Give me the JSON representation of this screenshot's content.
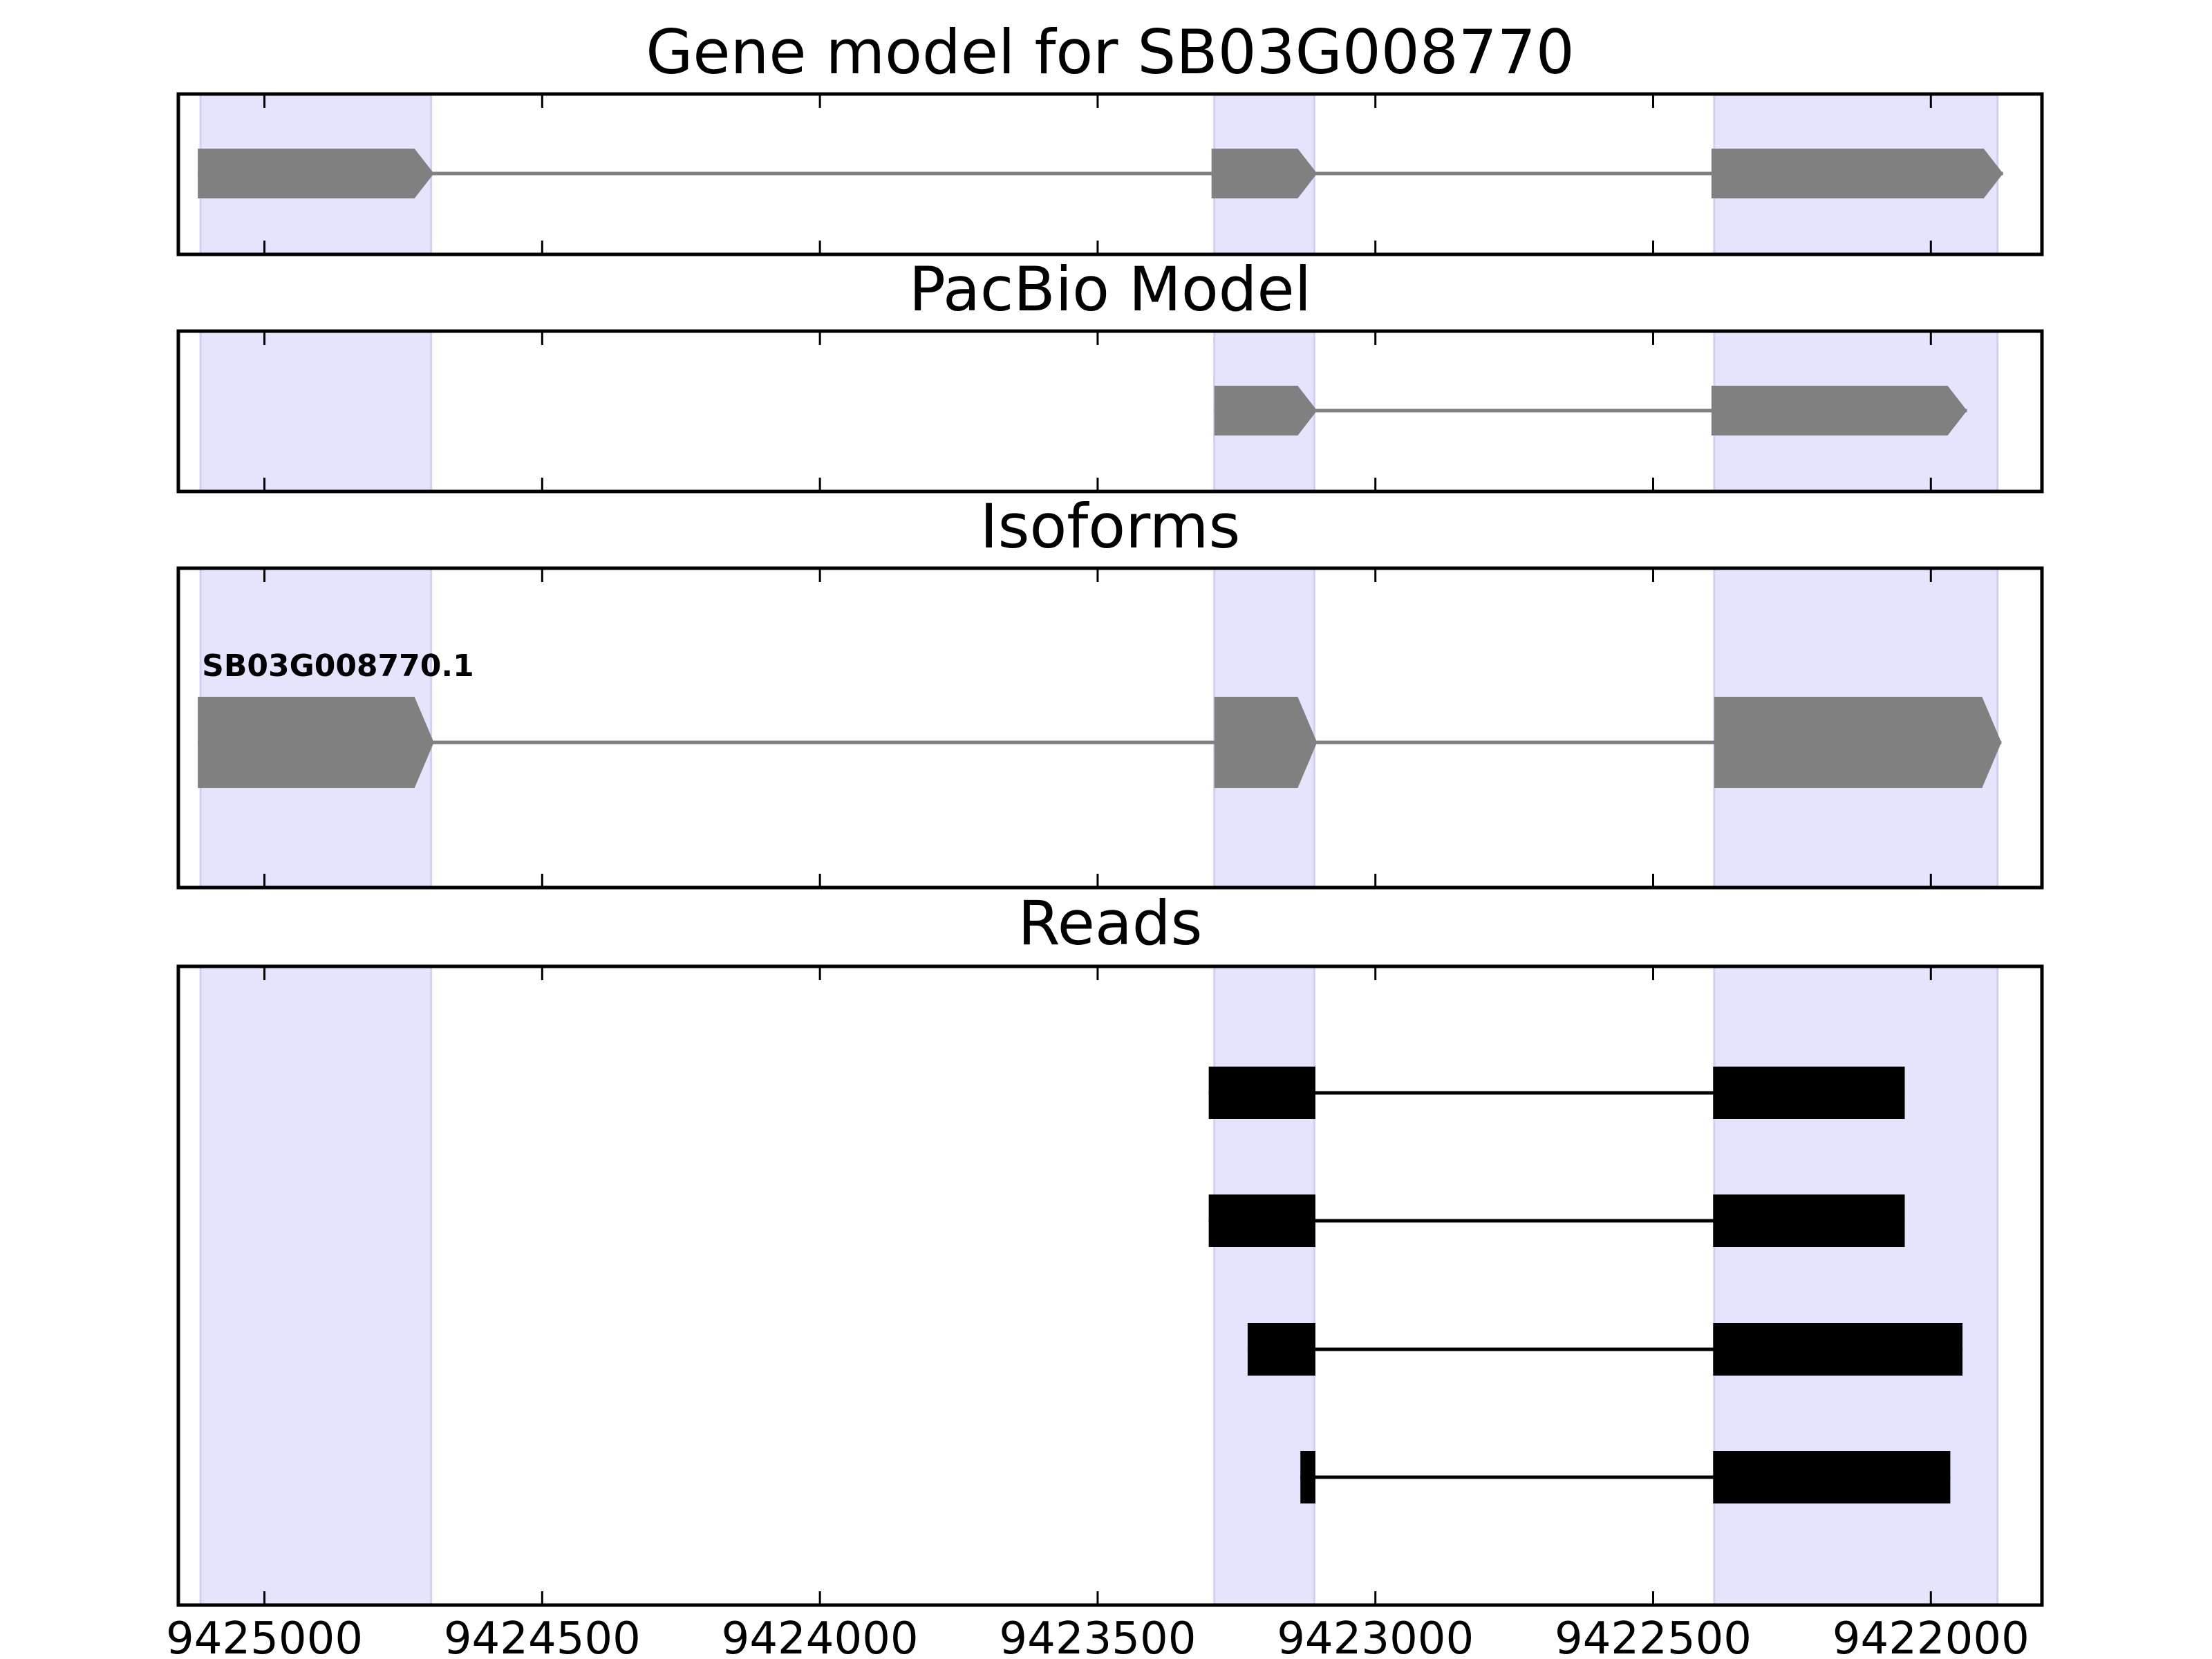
{
  "chart_data": {
    "type": "gene-track",
    "x_axis": {
      "xlim": [
        9425155,
        9421800
      ],
      "reversed": true,
      "ticks": [
        9425000,
        9424500,
        9424000,
        9423500,
        9423000,
        9422500,
        9422000
      ],
      "tick_labels": [
        "9425000",
        "9424500",
        "9424000",
        "9423500",
        "9423000",
        "9422500",
        "9422000"
      ]
    },
    "highlight_regions": [
      {
        "start": 9425115,
        "end": 9424700
      },
      {
        "start": 9423290,
        "end": 9423110
      },
      {
        "start": 9422390,
        "end": 9421880
      }
    ],
    "colors": {
      "highlight": "#e4e4fc",
      "highlight_edge": "#cfd0f3",
      "model_feature": "#808080",
      "read_feature": "#000000",
      "axes": "#000000"
    },
    "panels": [
      {
        "name": "gene-model",
        "title": "Gene model for SB03G008770",
        "features": [
          {
            "label": "",
            "exons": [
              {
                "start": 9425120,
                "end": 9424695
              },
              {
                "start": 9423295,
                "end": 9423105
              },
              {
                "start": 9422395,
                "end": 9421870
              }
            ]
          }
        ]
      },
      {
        "name": "pacbio-model",
        "title": "PacBio Model",
        "features": [
          {
            "label": "",
            "exons": [
              {
                "start": 9423290,
                "end": 9423105
              },
              {
                "start": 9422395,
                "end": 9421935
              }
            ]
          }
        ]
      },
      {
        "name": "isoforms",
        "title": "Isoforms",
        "features": [
          {
            "label": "SB03G008770.1",
            "exons": [
              {
                "start": 9425120,
                "end": 9424695
              },
              {
                "start": 9423290,
                "end": 9423105
              },
              {
                "start": 9422390,
                "end": 9421873
              }
            ]
          }
        ]
      },
      {
        "name": "reads",
        "title": "Reads",
        "features": [
          {
            "label": "",
            "exons": [
              {
                "start": 9423300,
                "end": 9423108
              },
              {
                "start": 9422392,
                "end": 9422047
              }
            ]
          },
          {
            "label": "",
            "exons": [
              {
                "start": 9423300,
                "end": 9423108
              },
              {
                "start": 9422392,
                "end": 9422047
              }
            ]
          },
          {
            "label": "",
            "exons": [
              {
                "start": 9423230,
                "end": 9423108
              },
              {
                "start": 9422392,
                "end": 9421943
              }
            ]
          },
          {
            "label": "",
            "exons": [
              {
                "start": 9423135,
                "end": 9423108
              },
              {
                "start": 9422392,
                "end": 9421965
              }
            ]
          }
        ]
      }
    ]
  }
}
